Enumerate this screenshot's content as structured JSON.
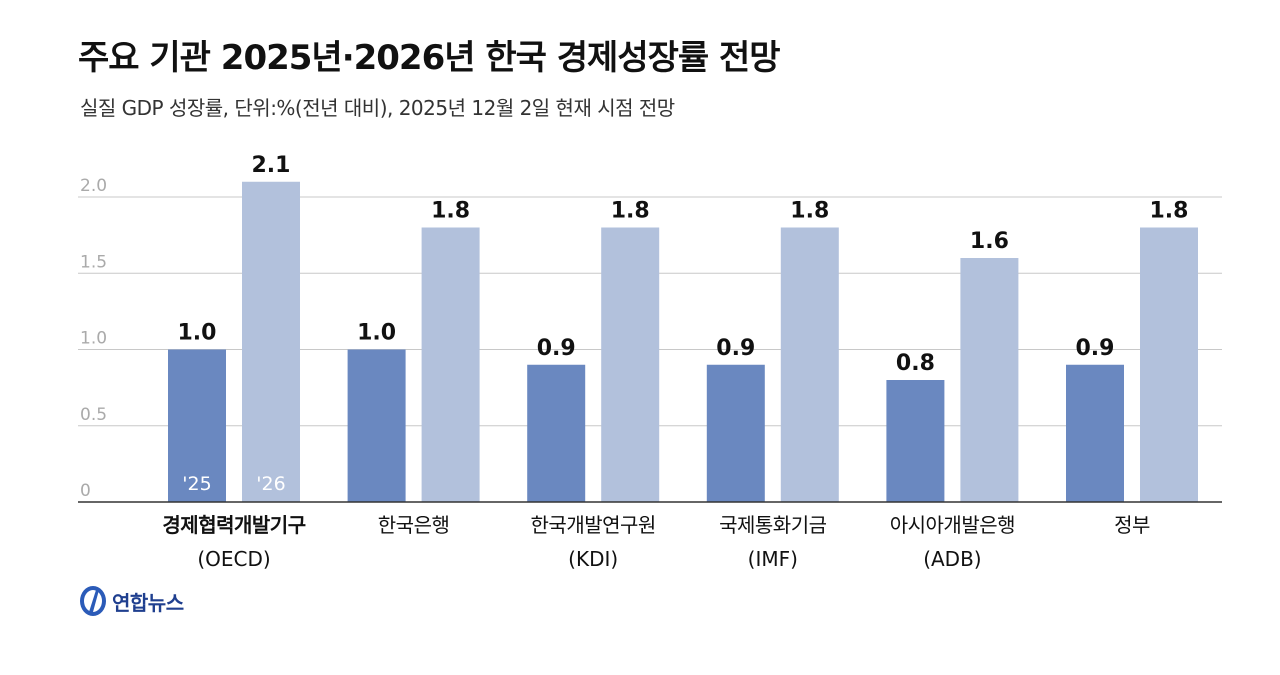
{
  "header": {
    "title": "주요 기관 2025년·2026년 한국 경제성장률 전망",
    "subtitle": "실질 GDP 성장률, 단위:%(전년 대비), 2025년 12월 2일 현재 시점 전망"
  },
  "logo": {
    "name": "연합뉴스",
    "icon": "yonhap-logo-icon"
  },
  "colors": {
    "series_2025": "#6a88c0",
    "series_2026": "#b2c1dc",
    "grid": "#c8c8c8",
    "axis": "#333333"
  },
  "chart_data": {
    "type": "bar",
    "categories": [
      {
        "name": "경제협력개발기구",
        "abbr": "(OECD)",
        "bold": true
      },
      {
        "name": "한국은행",
        "abbr": "",
        "bold": false
      },
      {
        "name": "한국개발연구원",
        "abbr": "(KDI)",
        "bold": false
      },
      {
        "name": "국제통화기금",
        "abbr": "(IMF)",
        "bold": false
      },
      {
        "name": "아시아개발은행",
        "abbr": "(ADB)",
        "bold": false
      },
      {
        "name": "정부",
        "abbr": "",
        "bold": false
      }
    ],
    "series": [
      {
        "name": "'25",
        "values": [
          1.0,
          1.0,
          0.9,
          0.9,
          0.8,
          0.9
        ]
      },
      {
        "name": "'26",
        "values": [
          2.1,
          1.8,
          1.8,
          1.8,
          1.6,
          1.8
        ]
      }
    ],
    "value_labels": [
      [
        "1.0",
        "1.0",
        "0.9",
        "0.9",
        "0.8",
        "0.9"
      ],
      [
        "2.1",
        "1.8",
        "1.8",
        "1.8",
        "1.6",
        "1.8"
      ]
    ],
    "yticks": [
      "0",
      "0.5",
      "1.0",
      "1.5",
      "2.0"
    ],
    "ylim": [
      0,
      2.0
    ],
    "grid": true,
    "legend": "inside first category bars"
  }
}
